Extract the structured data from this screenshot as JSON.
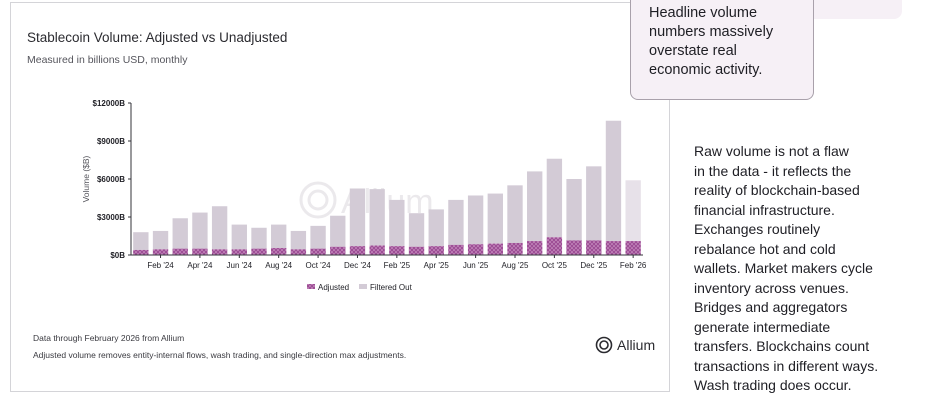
{
  "chart_title": "Stablecoin Volume: Adjusted vs Unadjusted",
  "chart_subtitle": "Measured in billions USD, monthly",
  "footer_source": "Data through February 2026 from Allium",
  "footer_note": "Adjusted volume removes entity-internal flows, wash trading, and single-direction max adjustments.",
  "brand_name": "Allium",
  "watermark": "Allium",
  "callout_lines": [
    "Headline volume",
    "numbers massively",
    "overstate real",
    "economic activity."
  ],
  "side_lines": [
    "Raw volume is not a flaw",
    "in the data - it reflects the",
    "reality of blockchain-based",
    "financial infrastructure.",
    "Exchanges routinely",
    "rebalance hot and cold",
    "wallets. Market makers cycle",
    "inventory across venues.",
    "Bridges and aggregators",
    "generate intermediate",
    "transfers. Blockchains count",
    "transactions in different ways.",
    "Wash trading does occur."
  ],
  "colors": {
    "adjusted": "#9e4f96",
    "adjusted_hatch": "#d9a9d2",
    "filtered_out": "#d3cbd6",
    "current_filtered_out": "#e7e1e9",
    "axis": "#33333a",
    "text": "#1e1e24"
  },
  "chart_data": {
    "type": "bar",
    "stacked": true,
    "ylabel": "Volume ($B)",
    "ylim": [
      0,
      12000
    ],
    "yticks": [
      0,
      3000,
      6000,
      9000,
      12000
    ],
    "ytick_labels": [
      "$0B",
      "$3000B",
      "$6000B",
      "$9000B",
      "$12000B"
    ],
    "xtick_labels": [
      "Feb '24",
      "Apr '24",
      "Jun '24",
      "Aug '24",
      "Oct '24",
      "Dec '24",
      "Feb '25",
      "Apr '25",
      "Jun '25",
      "Aug '25",
      "Oct '25",
      "Dec '25",
      "Feb '26"
    ],
    "legend_position": "bottom-center",
    "categories": [
      "Jan '24",
      "Feb '24",
      "Mar '24",
      "Apr '24",
      "May '24",
      "Jun '24",
      "Jul '24",
      "Aug '24",
      "Sep '24",
      "Oct '24",
      "Nov '24",
      "Dec '24",
      "Jan '25",
      "Feb '25",
      "Mar '25",
      "Apr '25",
      "May '25",
      "Jun '25",
      "Jul '25",
      "Aug '25",
      "Sep '25",
      "Oct '25",
      "Nov '25",
      "Dec '25",
      "Jan '26",
      "Feb '26"
    ],
    "series": [
      {
        "name": "Adjusted",
        "values": [
          400,
          450,
          500,
          500,
          450,
          450,
          500,
          550,
          450,
          500,
          650,
          700,
          750,
          700,
          650,
          700,
          800,
          850,
          900,
          950,
          1100,
          1400,
          1150,
          1150,
          1100,
          1100
        ]
      },
      {
        "name": "Filtered Out",
        "values": [
          1400,
          1450,
          2400,
          2850,
          3400,
          1950,
          1650,
          1850,
          1450,
          1800,
          2450,
          4550,
          4450,
          3650,
          2650,
          2900,
          3550,
          3850,
          3950,
          4550,
          5500,
          6200,
          4850,
          5850,
          9500,
          4800
        ]
      }
    ]
  }
}
